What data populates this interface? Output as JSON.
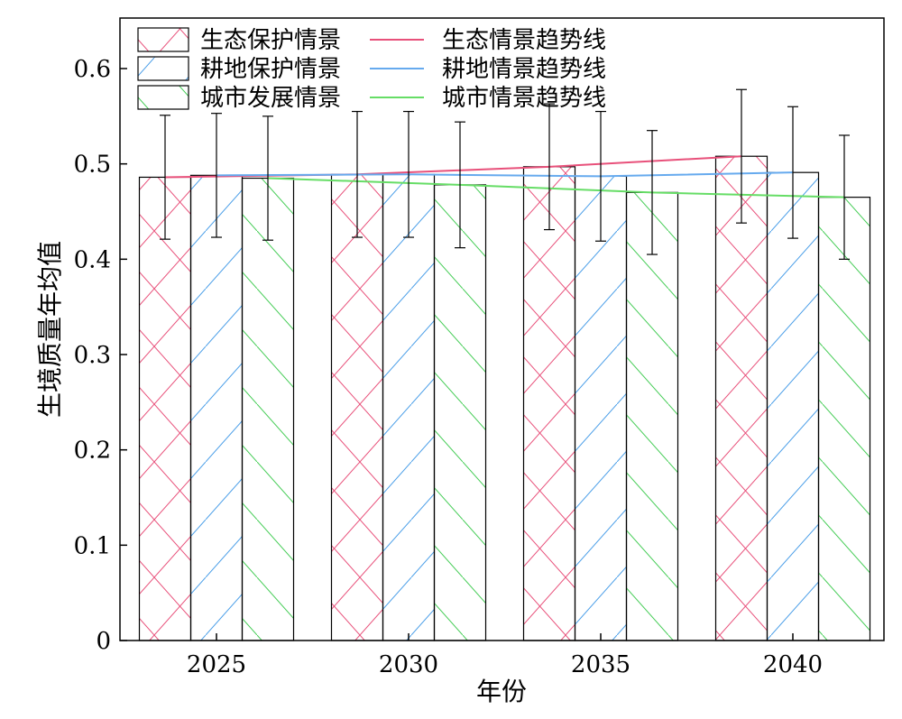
{
  "chart_data": {
    "type": "bar",
    "title": "",
    "xlabel": "年份",
    "ylabel": "生境质量年均值",
    "categories": [
      "2025",
      "2030",
      "2035",
      "2040"
    ],
    "ylim": [
      0,
      0.65
    ],
    "yticks": [
      0,
      0.1,
      0.2,
      0.3,
      0.4,
      0.5,
      0.6
    ],
    "ytick_labels": [
      "0",
      "0.1",
      "0.2",
      "0.3",
      "0.4",
      "0.5",
      "0.6"
    ],
    "grid": false,
    "legend_position": "top-left",
    "series": [
      {
        "name": "生态保护情景",
        "values": [
          0.486,
          0.489,
          0.497,
          0.508
        ],
        "error": [
          0.065,
          0.066,
          0.066,
          0.07
        ],
        "color": "#e8507a",
        "hatch": "crosshatch"
      },
      {
        "name": "耕地保护情景",
        "values": [
          0.488,
          0.489,
          0.487,
          0.491
        ],
        "error": [
          0.065,
          0.066,
          0.068,
          0.069
        ],
        "color": "#4a9ee8",
        "hatch": "forward-diagonal"
      },
      {
        "name": "城市发展情景",
        "values": [
          0.485,
          0.478,
          0.47,
          0.465
        ],
        "error": [
          0.065,
          0.066,
          0.065,
          0.065
        ],
        "color": "#44cc55",
        "hatch": "chevron"
      }
    ],
    "trendlines": [
      {
        "name": "生态情景趋势线",
        "color": "#e8507a",
        "values": [
          0.486,
          0.489,
          0.497,
          0.508
        ]
      },
      {
        "name": "耕地情景趋势线",
        "color": "#66aaee",
        "values": [
          0.488,
          0.489,
          0.487,
          0.491
        ]
      },
      {
        "name": "城市情景趋势线",
        "color": "#66dd66",
        "values": [
          0.485,
          0.478,
          0.47,
          0.465
        ]
      }
    ]
  }
}
